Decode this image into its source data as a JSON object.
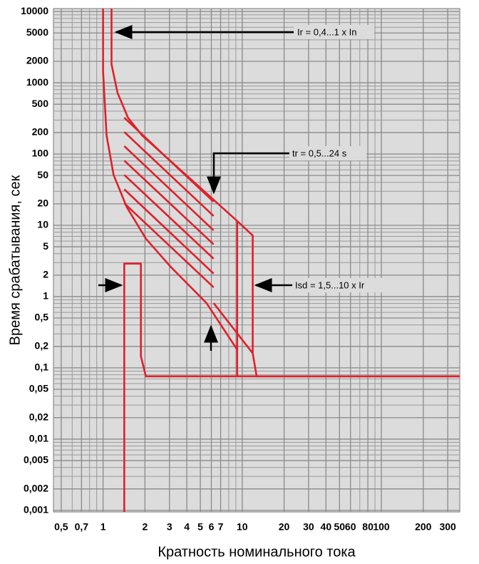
{
  "chart_data": {
    "type": "line",
    "xlabel": "Кратность номинального тока",
    "ylabel": "Время срабатывания, сек",
    "log_x": true,
    "log_y": true,
    "grid": true,
    "annotations": [
      "Ir = 0,4...1 x In",
      "tr = 0,5...24 s",
      "Isd = 1,5...10 x Ir"
    ],
    "xlim": [
      0.44,
      366
    ],
    "ylim": [
      0.00095,
      11000
    ],
    "xticks": [
      {
        "value": 0.5,
        "label": "0,5"
      },
      {
        "value": 0.7,
        "label": "0,7"
      },
      1,
      2,
      3,
      4,
      5,
      6,
      7,
      10,
      20,
      30,
      40,
      50,
      60,
      80,
      100,
      200,
      300
    ],
    "xminor": [
      0.6,
      0.8,
      0.9,
      8,
      9,
      70,
      90
    ],
    "yticks": [
      10000,
      5000,
      2000,
      1000,
      500,
      200,
      100,
      50,
      20,
      10,
      5,
      2,
      1,
      {
        "value": 0.5,
        "label": "0,5"
      },
      {
        "value": 0.2,
        "label": "0,2"
      },
      {
        "value": 0.1,
        "label": "0,1"
      },
      {
        "value": 0.05,
        "label": "0,05"
      },
      {
        "value": 0.02,
        "label": "0,02"
      },
      {
        "value": 0.01,
        "label": "0,01"
      },
      {
        "value": 0.005,
        "label": "0,005"
      },
      {
        "value": 0.002,
        "label": "0,002"
      },
      {
        "value": 0.001,
        "label": "0,001"
      }
    ],
    "yminor": [
      3000,
      4000,
      6000,
      7000,
      8000,
      9000,
      300,
      400,
      600,
      700,
      800,
      900,
      30,
      40,
      60,
      70,
      80,
      90,
      3,
      4,
      6,
      7,
      8,
      9,
      0.3,
      0.4,
      0.6,
      0.7,
      0.8,
      0.9,
      0.03,
      0.04,
      0.06,
      0.07,
      0.08,
      0.09,
      0.003,
      0.004,
      0.006,
      0.007,
      0.008,
      0.009
    ],
    "series": [
      {
        "color": "#e0202a",
        "x": [
          1,
          1,
          1.06,
          1.19,
          1.48,
          2.03,
          3.07,
          5.54,
          9.2,
          9.2
        ],
        "values": [
          11000,
          1450,
          182,
          51,
          18,
          6.5,
          2.6,
          0.81,
          0.18,
          0.076
        ]
      },
      {
        "color": "#e0202a",
        "x": [
          1.15,
          1.15,
          1.27,
          1.51,
          1.91,
          9.2,
          11.9,
          11.9,
          12.7,
          366
        ],
        "values": [
          11000,
          1820,
          724,
          324,
          182,
          11.5,
          7.2,
          0.16,
          0.076,
          0.076
        ]
      },
      {
        "color": "#e0202a",
        "x": [
          9.2,
          9.2
        ],
        "values": [
          11.5,
          0.18
        ]
      },
      {
        "color": "#e0202a",
        "x": [
          6.23,
          11.9
        ],
        "values": [
          0.81,
          0.16
        ]
      },
      {
        "color": "#e0202a",
        "x": [
          1.42,
          1.42,
          1.87,
          1.87,
          2.03,
          366
        ],
        "values": [
          0.00095,
          2.9,
          2.9,
          0.145,
          0.076,
          0.076
        ]
      },
      {
        "color": "#e0202a",
        "x": [
          1.42,
          6.23
        ],
        "values": [
          324,
          21.4
        ]
      },
      {
        "color": "#e0202a",
        "x": [
          1.42,
          6.23
        ],
        "values": [
          204,
          13.5
        ]
      },
      {
        "color": "#e0202a",
        "x": [
          1.42,
          6.23
        ],
        "values": [
          129,
          8.5
        ]
      },
      {
        "color": "#e0202a",
        "x": [
          1.42,
          6.23
        ],
        "values": [
          81,
          5.4
        ]
      },
      {
        "color": "#e0202a",
        "x": [
          1.42,
          6.23
        ],
        "values": [
          51,
          3.4
        ]
      },
      {
        "color": "#e0202a",
        "x": [
          1.42,
          6.23
        ],
        "values": [
          32,
          2.1
        ]
      },
      {
        "color": "#e0202a",
        "x": [
          1.42,
          6.23
        ],
        "values": [
          20.4,
          1.35
        ]
      }
    ]
  }
}
